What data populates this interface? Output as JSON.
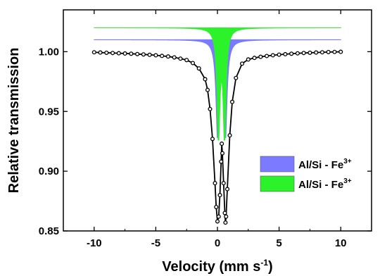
{
  "chart_data": {
    "type": "scatter",
    "xlabel": "Velocity (mm s",
    "xlabel_sup": "-1",
    "xlabel_tail": ")",
    "ylabel": "Relative  transmission",
    "xlim": [
      -12.5,
      12.5
    ],
    "ylim": [
      0.85,
      1.035
    ],
    "x_ticks": [
      -10,
      -5,
      0,
      5,
      10
    ],
    "y_ticks": [
      0.85,
      0.9,
      0.95,
      1.0
    ],
    "x_tick_labels": [
      "-10",
      "-5",
      "0",
      "5",
      "10"
    ],
    "y_tick_labels": [
      "0.85",
      "0.90",
      "0.95",
      "1.00"
    ],
    "grid": false,
    "legend_position": "right",
    "series": [
      {
        "name": "Al/Si - Fe",
        "name_sup": "3+",
        "kind": "doublet-fill",
        "color": "#7b7bff",
        "baseline": 1.01,
        "depth": 0.082,
        "centers": [
          0.02,
          0.64
        ],
        "hwhm": 0.16
      },
      {
        "name": "Al/Si - Fe",
        "name_sup": "3+",
        "kind": "doublet-fill",
        "color": "#2cf22c",
        "baseline": 1.02,
        "depth": 0.094,
        "centers": [
          0.08,
          0.58
        ],
        "hwhm": 0.14
      },
      {
        "name": "",
        "kind": "data",
        "color": "#000000",
        "baseline": 1.0,
        "points": [
          [
            -10.0,
            0.9995
          ],
          [
            -9.5,
            0.9993
          ],
          [
            -9.0,
            0.9991
          ],
          [
            -8.5,
            0.9989
          ],
          [
            -8.0,
            0.9987
          ],
          [
            -7.5,
            0.9985
          ],
          [
            -7.0,
            0.9983
          ],
          [
            -6.5,
            0.998
          ],
          [
            -6.0,
            0.9977
          ],
          [
            -5.5,
            0.9974
          ],
          [
            -5.0,
            0.997
          ],
          [
            -4.5,
            0.9965
          ],
          [
            -4.0,
            0.996
          ],
          [
            -3.5,
            0.9952
          ],
          [
            -3.0,
            0.9942
          ],
          [
            -2.5,
            0.993
          ],
          [
            -2.0,
            0.9905
          ],
          [
            -1.5,
            0.986
          ],
          [
            -1.0,
            0.977
          ],
          [
            -0.8,
            0.968
          ],
          [
            -0.6,
            0.952
          ],
          [
            -0.4,
            0.927
          ],
          [
            -0.2,
            0.89
          ],
          [
            -0.1,
            0.87
          ],
          [
            0.0,
            0.858
          ],
          [
            0.1,
            0.862
          ],
          [
            0.2,
            0.88
          ],
          [
            0.3,
            0.908
          ],
          [
            0.35,
            0.923
          ],
          [
            0.4,
            0.915
          ],
          [
            0.5,
            0.89
          ],
          [
            0.6,
            0.865
          ],
          [
            0.65,
            0.857
          ],
          [
            0.7,
            0.862
          ],
          [
            0.8,
            0.885
          ],
          [
            1.0,
            0.93
          ],
          [
            1.2,
            0.958
          ],
          [
            1.5,
            0.978
          ],
          [
            2.0,
            0.99
          ],
          [
            2.5,
            0.9935
          ],
          [
            3.0,
            0.9948
          ],
          [
            3.5,
            0.9957
          ],
          [
            4.0,
            0.9964
          ],
          [
            4.5,
            0.997
          ],
          [
            5.0,
            0.9975
          ],
          [
            5.5,
            0.9979
          ],
          [
            6.0,
            0.9983
          ],
          [
            6.5,
            0.9986
          ],
          [
            7.0,
            0.9989
          ],
          [
            7.5,
            0.9991
          ],
          [
            8.0,
            0.9993
          ],
          [
            8.5,
            0.9995
          ],
          [
            9.0,
            0.9997
          ],
          [
            9.5,
            0.9998
          ],
          [
            10.0,
            0.9999
          ]
        ]
      }
    ]
  }
}
